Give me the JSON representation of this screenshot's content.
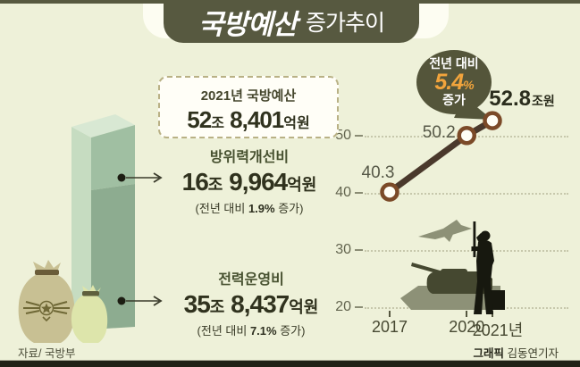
{
  "header": {
    "title_main": "국방예산",
    "title_sub": "증가추이"
  },
  "budget_box": {
    "title": "2021년 국방예산",
    "num1": "52",
    "unit1": "조",
    "num2": " 8,401",
    "unit2": "억원"
  },
  "improvement": {
    "label": "방위력개선비",
    "num1": "16",
    "unit1": "조",
    "num2": " 9,964",
    "unit2": "억원",
    "note_pre": "(전년 대비 ",
    "note_pct": "1.9%",
    "note_post": " 증가)"
  },
  "operation": {
    "label": "전력운영비",
    "num1": "35",
    "unit1": "조",
    "num2": " 8,437",
    "unit2": "억원",
    "note_pre": "(전년 대비 ",
    "note_pct": "7.1%",
    "note_post": " 증가)"
  },
  "bubble": {
    "line1": "전년 대비",
    "pct": "5.4",
    "pct_unit": "%",
    "line2": "증가"
  },
  "footer": {
    "source": "자료/ 국방부",
    "credit_label": "그래픽",
    "credit_name": " 김동연기자"
  },
  "colors": {
    "background": "#eef1d9",
    "frame": "#575940",
    "header_bg": "#575940",
    "accent_orange": "#f2a43c",
    "line": "#4a392c",
    "marker_ring": "#7b4a28",
    "bar_front_top": "#a0bfa2",
    "bar_front_bottom": "#8dac90",
    "bar_side": "#c6dcc1",
    "bar_top": "#d8e8d3",
    "silhouette_light": "#8d9177",
    "silhouette_dark": "#454830",
    "silhouette_black": "#17180f"
  },
  "chart_data": {
    "type": "line",
    "title": "국방예산 증가추이",
    "unit": "조원",
    "x": [
      2017,
      2020,
      2021
    ],
    "x_labels": [
      "2017",
      "2020",
      "2021년"
    ],
    "values": [
      40.3,
      50.2,
      52.8
    ],
    "point_labels": [
      {
        "text": "40.3"
      },
      {
        "text": "50.2"
      },
      {
        "text": "52.8",
        "unit": "조원"
      }
    ],
    "yticks": [
      50,
      40,
      30,
      20
    ],
    "ylim": [
      20,
      55
    ],
    "grid": "dotted",
    "annotation": "전년 대비 5.4% 증가",
    "line_color": "#4a392c",
    "marker": "open-circle"
  }
}
